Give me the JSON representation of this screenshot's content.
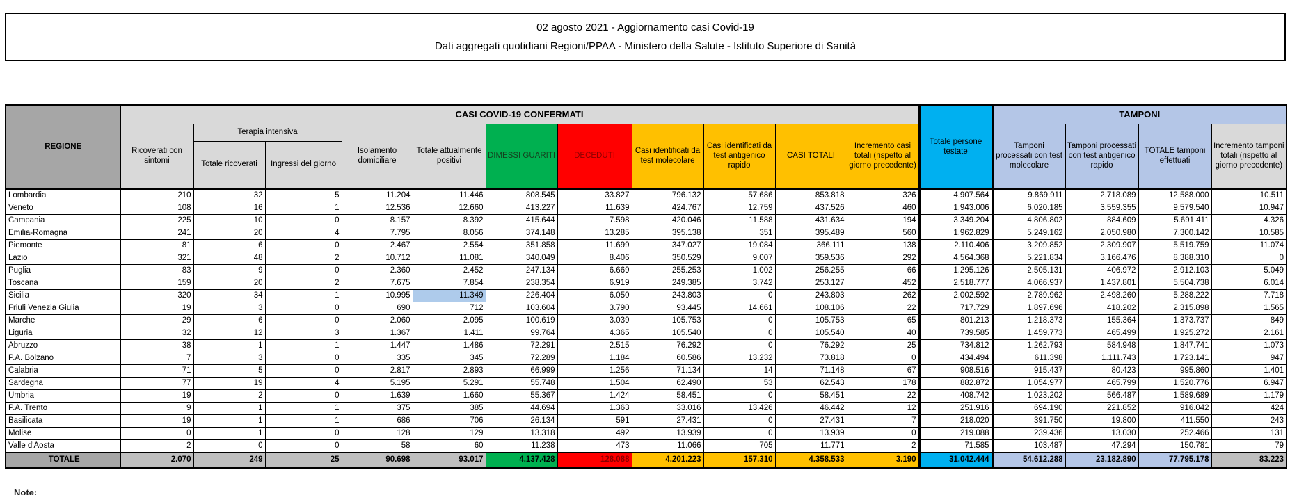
{
  "title": {
    "line1": "02 agosto 2021 - Aggiornamento casi Covid-19",
    "line2": "Dati aggregati quotidiani Regioni/PPAA - Ministero della Salute - Istituto Superiore di Sanità"
  },
  "footer_note": "Note:",
  "colors": {
    "green": "#00B050",
    "red": "#FF0000",
    "yellow": "#FFC000",
    "cyan": "#00B0F0",
    "light_blue": "#B4C6E7",
    "band_gray": "#D9D9D9",
    "region_header_gray": "#A6A6A6",
    "totale_gray": "#BFBFBF",
    "highlight_blue": "#AECBEB"
  },
  "table": {
    "group_headers": {
      "confermati": "CASI COVID-19 CONFERMATI",
      "tamponi": "TAMPONI"
    },
    "columns": {
      "regione": "REGIONE",
      "ricoverati": "Ricoverati con sintomi",
      "terapia_intensiva": "Terapia intensiva",
      "ti_totale": "Totale ricoverati",
      "ti_ingressi": "Ingressi del giorno",
      "isolamento": "Isolamento domiciliare",
      "attualmente_positivi": "Totale attualmente positivi",
      "dimessi": "DIMESSI GUARITI",
      "deceduti": "DECEDUTI",
      "casi_molecolare": "Casi identificati da test molecolare",
      "casi_antigenico": "Casi identificati da test antigenico rapido",
      "casi_totali": "CASI TOTALI",
      "incremento_casi": "Incremento casi totali (rispetto al giorno precedente)",
      "persone_testate": "Totale persone testate",
      "tamponi_molecolare": "Tamponi processati con test molecolare",
      "tamponi_antigenico": "Tamponi processati con test antigenico rapido",
      "tamponi_totale": "TOTALE tamponi effettuati",
      "incremento_tamponi": "Incremento tamponi totali (rispetto al giorno precedente)"
    },
    "highlight": {
      "row": "Sicilia",
      "col_index": 4
    },
    "rows": [
      {
        "regione": "Lombardia",
        "values": [
          "210",
          "32",
          "5",
          "11.204",
          "11.446",
          "808.545",
          "33.827",
          "796.132",
          "57.686",
          "853.818",
          "326",
          "4.907.564",
          "9.869.911",
          "2.718.089",
          "12.588.000",
          "10.511"
        ]
      },
      {
        "regione": "Veneto",
        "values": [
          "108",
          "16",
          "1",
          "12.536",
          "12.660",
          "413.227",
          "11.639",
          "424.767",
          "12.759",
          "437.526",
          "460",
          "1.943.006",
          "6.020.185",
          "3.559.355",
          "9.579.540",
          "10.947"
        ]
      },
      {
        "regione": "Campania",
        "values": [
          "225",
          "10",
          "0",
          "8.157",
          "8.392",
          "415.644",
          "7.598",
          "420.046",
          "11.588",
          "431.634",
          "194",
          "3.349.204",
          "4.806.802",
          "884.609",
          "5.691.411",
          "4.326"
        ]
      },
      {
        "regione": "Emilia-Romagna",
        "values": [
          "241",
          "20",
          "4",
          "7.795",
          "8.056",
          "374.148",
          "13.285",
          "395.138",
          "351",
          "395.489",
          "560",
          "1.962.829",
          "5.249.162",
          "2.050.980",
          "7.300.142",
          "10.585"
        ]
      },
      {
        "regione": "Piemonte",
        "values": [
          "81",
          "6",
          "0",
          "2.467",
          "2.554",
          "351.858",
          "11.699",
          "347.027",
          "19.084",
          "366.111",
          "138",
          "2.110.406",
          "3.209.852",
          "2.309.907",
          "5.519.759",
          "11.074"
        ]
      },
      {
        "regione": "Lazio",
        "values": [
          "321",
          "48",
          "2",
          "10.712",
          "11.081",
          "340.049",
          "8.406",
          "350.529",
          "9.007",
          "359.536",
          "292",
          "4.564.368",
          "5.221.834",
          "3.166.476",
          "8.388.310",
          "0"
        ]
      },
      {
        "regione": "Puglia",
        "values": [
          "83",
          "9",
          "0",
          "2.360",
          "2.452",
          "247.134",
          "6.669",
          "255.253",
          "1.002",
          "256.255",
          "66",
          "1.295.126",
          "2.505.131",
          "406.972",
          "2.912.103",
          "5.049"
        ]
      },
      {
        "regione": "Toscana",
        "values": [
          "159",
          "20",
          "2",
          "7.675",
          "7.854",
          "238.354",
          "6.919",
          "249.385",
          "3.742",
          "253.127",
          "452",
          "2.518.777",
          "4.066.937",
          "1.437.801",
          "5.504.738",
          "6.014"
        ]
      },
      {
        "regione": "Sicilia",
        "values": [
          "320",
          "34",
          "1",
          "10.995",
          "11.349",
          "226.404",
          "6.050",
          "243.803",
          "0",
          "243.803",
          "262",
          "2.002.592",
          "2.789.962",
          "2.498.260",
          "5.288.222",
          "7.718"
        ]
      },
      {
        "regione": "Friuli Venezia Giulia",
        "values": [
          "19",
          "3",
          "0",
          "690",
          "712",
          "103.604",
          "3.790",
          "93.445",
          "14.661",
          "108.106",
          "22",
          "717.729",
          "1.897.696",
          "418.202",
          "2.315.898",
          "1.565"
        ]
      },
      {
        "regione": "Marche",
        "values": [
          "29",
          "6",
          "0",
          "2.060",
          "2.095",
          "100.619",
          "3.039",
          "105.753",
          "0",
          "105.753",
          "65",
          "801.213",
          "1.218.373",
          "155.364",
          "1.373.737",
          "849"
        ]
      },
      {
        "regione": "Liguria",
        "values": [
          "32",
          "12",
          "3",
          "1.367",
          "1.411",
          "99.764",
          "4.365",
          "105.540",
          "0",
          "105.540",
          "40",
          "739.585",
          "1.459.773",
          "465.499",
          "1.925.272",
          "2.161"
        ]
      },
      {
        "regione": "Abruzzo",
        "values": [
          "38",
          "1",
          "1",
          "1.447",
          "1.486",
          "72.291",
          "2.515",
          "76.292",
          "0",
          "76.292",
          "25",
          "734.812",
          "1.262.793",
          "584.948",
          "1.847.741",
          "1.073"
        ]
      },
      {
        "regione": "P.A. Bolzano",
        "values": [
          "7",
          "3",
          "0",
          "335",
          "345",
          "72.289",
          "1.184",
          "60.586",
          "13.232",
          "73.818",
          "0",
          "434.494",
          "611.398",
          "1.111.743",
          "1.723.141",
          "947"
        ]
      },
      {
        "regione": "Calabria",
        "values": [
          "71",
          "5",
          "0",
          "2.817",
          "2.893",
          "66.999",
          "1.256",
          "71.134",
          "14",
          "71.148",
          "67",
          "908.516",
          "915.437",
          "80.423",
          "995.860",
          "1.401"
        ]
      },
      {
        "regione": "Sardegna",
        "values": [
          "77",
          "19",
          "4",
          "5.195",
          "5.291",
          "55.748",
          "1.504",
          "62.490",
          "53",
          "62.543",
          "178",
          "882.872",
          "1.054.977",
          "465.799",
          "1.520.776",
          "6.947"
        ]
      },
      {
        "regione": "Umbria",
        "values": [
          "19",
          "2",
          "0",
          "1.639",
          "1.660",
          "55.367",
          "1.424",
          "58.451",
          "0",
          "58.451",
          "22",
          "408.742",
          "1.023.202",
          "566.487",
          "1.589.689",
          "1.179"
        ]
      },
      {
        "regione": "P.A. Trento",
        "values": [
          "9",
          "1",
          "1",
          "375",
          "385",
          "44.694",
          "1.363",
          "33.016",
          "13.426",
          "46.442",
          "12",
          "251.916",
          "694.190",
          "221.852",
          "916.042",
          "424"
        ]
      },
      {
        "regione": "Basilicata",
        "values": [
          "19",
          "1",
          "1",
          "686",
          "706",
          "26.134",
          "591",
          "27.431",
          "0",
          "27.431",
          "7",
          "218.020",
          "391.750",
          "19.800",
          "411.550",
          "243"
        ]
      },
      {
        "regione": "Molise",
        "values": [
          "0",
          "1",
          "0",
          "128",
          "129",
          "13.318",
          "492",
          "13.939",
          "0",
          "13.939",
          "0",
          "219.088",
          "239.436",
          "13.030",
          "252.466",
          "131"
        ]
      },
      {
        "regione": "Valle d'Aosta",
        "values": [
          "2",
          "0",
          "0",
          "58",
          "60",
          "11.238",
          "473",
          "11.066",
          "705",
          "11.771",
          "2",
          "71.585",
          "103.487",
          "47.294",
          "150.781",
          "79"
        ]
      }
    ],
    "totale": {
      "regione": "TOTALE",
      "values": [
        "2.070",
        "249",
        "25",
        "90.698",
        "93.017",
        "4.137.428",
        "128.088",
        "4.201.223",
        "157.310",
        "4.358.533",
        "3.190",
        "31.042.444",
        "54.612.288",
        "23.182.890",
        "77.795.178",
        "83.223"
      ]
    }
  }
}
